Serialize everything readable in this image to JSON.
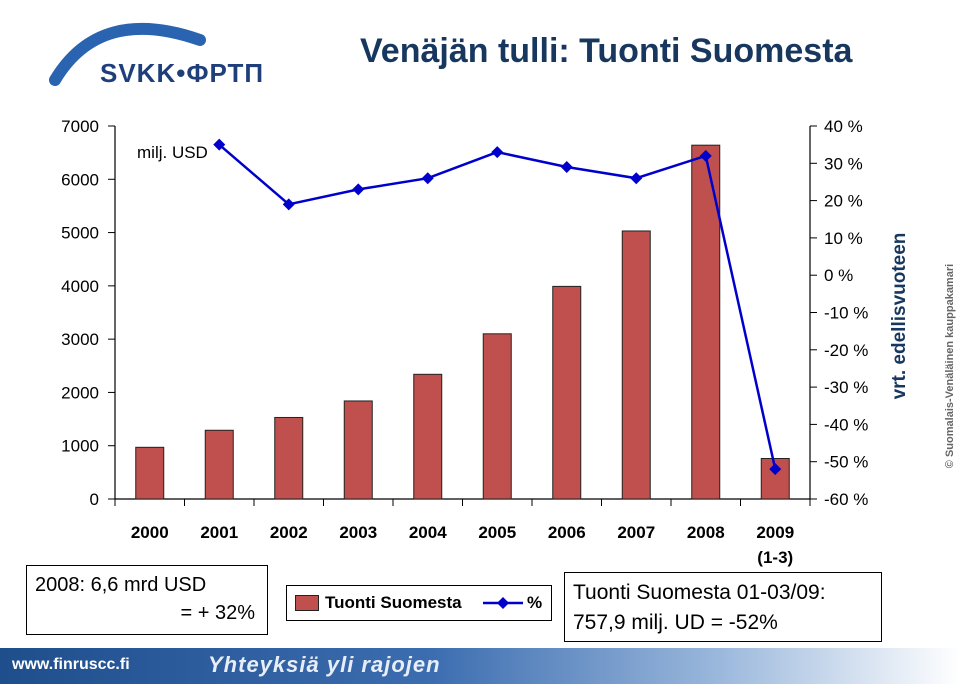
{
  "logo": {
    "text": "SVKK•ФРТП"
  },
  "title": "Venäjän tulli: Tuonti Suomesta",
  "note": {
    "line1": "2008: 6,6 mrd USD",
    "line2": "= + 32%"
  },
  "legend": {
    "bar_label": "Tuonti Suomesta",
    "line_label": "%"
  },
  "stats": {
    "line1": "Tuonti Suomesta 01-03/09:",
    "line2": "757,9 milj. UD = -52%"
  },
  "footer": {
    "url": "www.finruscc.fi",
    "slogan": "Yhteyksiä yli rajojen"
  },
  "copyright": "© Suomalais-Venäläinen kauppakamari",
  "chart_data": {
    "type": "bar",
    "categories": [
      "2000",
      "2001",
      "2002",
      "2003",
      "2004",
      "2005",
      "2006",
      "2007",
      "2008",
      "2009"
    ],
    "category_sublabels": [
      "",
      "",
      "",
      "",
      "",
      "",
      "",
      "",
      "",
      "(1-3)"
    ],
    "series": [
      {
        "name": "Tuonti Suomesta",
        "type": "bar",
        "axis": "left",
        "color": "#c0504d",
        "values": [
          970,
          1290,
          1530,
          1840,
          2340,
          3100,
          3990,
          5030,
          6640,
          760
        ]
      },
      {
        "name": "%",
        "type": "line",
        "axis": "right",
        "color": "#0000cc",
        "values": [
          null,
          35,
          19,
          23,
          26,
          33,
          29,
          26,
          32,
          -52
        ]
      }
    ],
    "yaxis_left": {
      "label": "milj. USD",
      "min": 0,
      "max": 7000,
      "ticks": [
        0,
        1000,
        2000,
        3000,
        4000,
        5000,
        6000,
        7000
      ]
    },
    "yaxis_right": {
      "label": "vrt. edellisvuoteen",
      "min": -60,
      "max": 40,
      "ticks": [
        40,
        30,
        20,
        10,
        0,
        -10,
        -20,
        -30,
        -40,
        -50,
        -60
      ],
      "tick_labels": [
        "40 %",
        "30 %",
        "20 %",
        "10 %",
        "0 %",
        "-10 %",
        "-20 %",
        "-30 %",
        "-40 %",
        "-50 %",
        "-60 %"
      ]
    },
    "grid": false,
    "legend_position": "bottom"
  }
}
